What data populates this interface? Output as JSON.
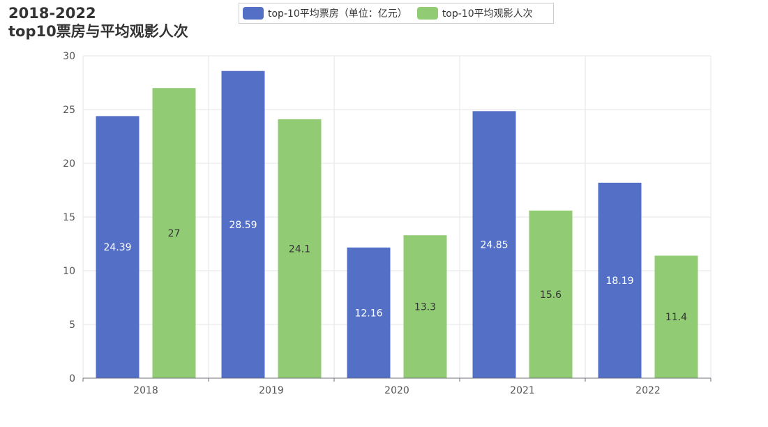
{
  "chart_data": {
    "type": "bar",
    "title_line1": "2018-2022",
    "title_line2": "top10票房与平均观影人次",
    "categories": [
      "2018",
      "2019",
      "2020",
      "2021",
      "2022"
    ],
    "series": [
      {
        "name": "top-10平均票房（单位：亿元）",
        "values": [
          24.39,
          28.59,
          12.16,
          24.85,
          18.19
        ],
        "color": "#5470c6",
        "label_color": "#ffffff"
      },
      {
        "name": "top-10平均观影人次",
        "values": [
          27,
          24.1,
          13.3,
          15.6,
          11.4
        ],
        "color": "#91cc75",
        "label_color": "#333333"
      }
    ],
    "ylim": [
      0,
      30
    ],
    "yticks": [
      "0",
      "5",
      "10",
      "15",
      "20",
      "25",
      "30"
    ],
    "grid": true,
    "legend_position": "top-center"
  }
}
